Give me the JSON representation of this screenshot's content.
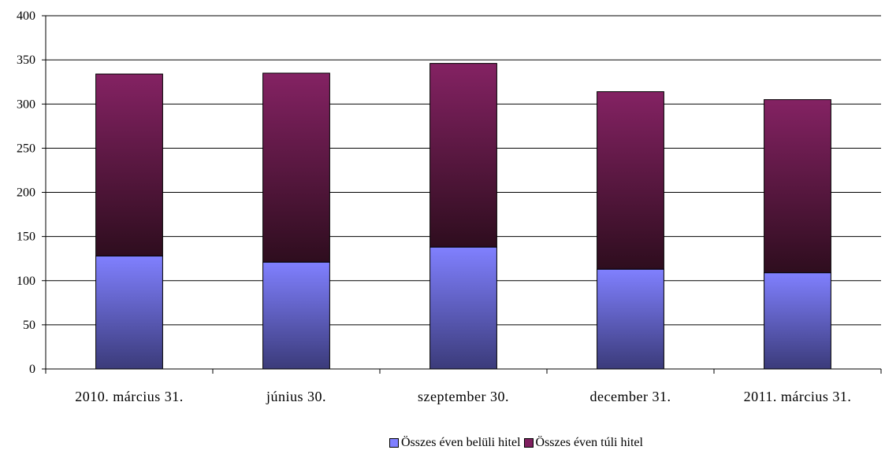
{
  "chart_data": {
    "type": "bar",
    "stacked": true,
    "categories": [
      "2010. március 31.",
      "június 30.",
      "szeptember 30.",
      "december 31.",
      "2011. március 31."
    ],
    "series": [
      {
        "name": "Összes éven belüli hitel",
        "values": [
          128,
          121,
          138,
          113,
          109
        ],
        "color": "#8080ff"
      },
      {
        "name": "Összes éven túli hitel",
        "values": [
          206,
          214,
          208,
          201,
          196
        ],
        "color": "#7f1f5f"
      }
    ],
    "ylim": [
      0,
      400
    ],
    "yticks": [
      0,
      50,
      100,
      150,
      200,
      250,
      300,
      350,
      400
    ],
    "grid": true,
    "legend_position": "bottom"
  }
}
